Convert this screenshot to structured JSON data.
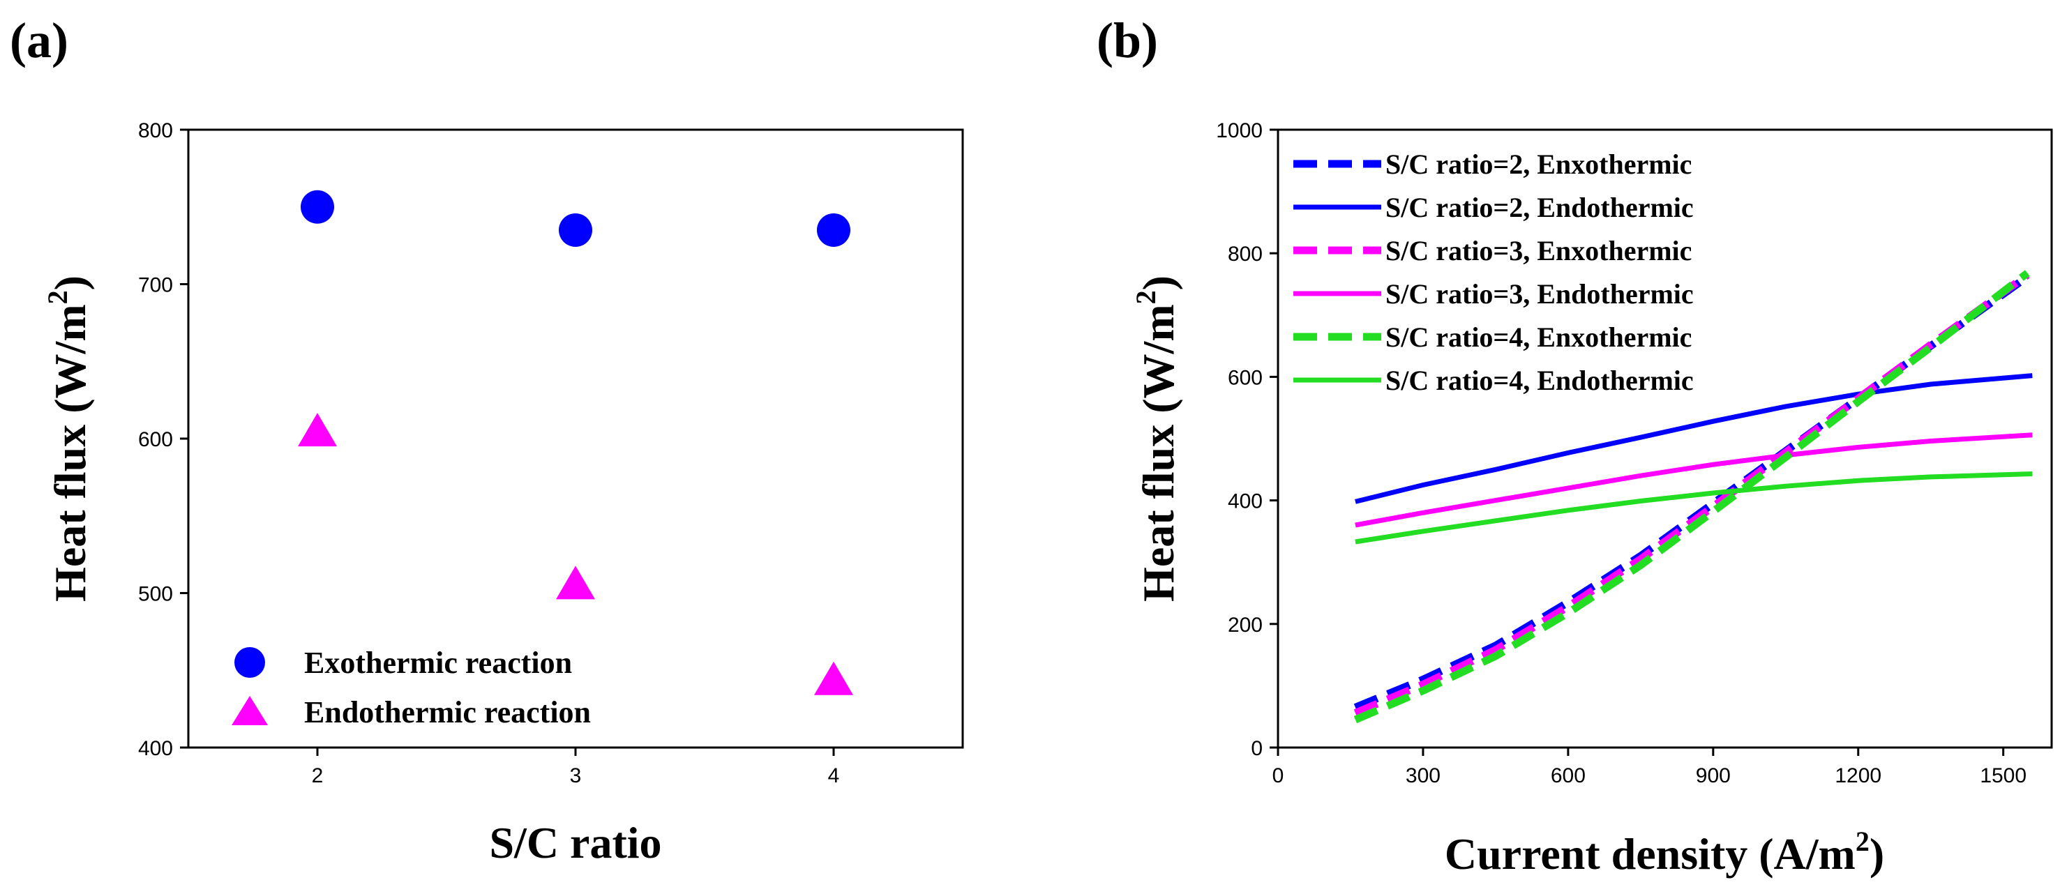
{
  "chart_data": [
    {
      "type": "scatter",
      "panel_label": "(a)",
      "xlabel": "S/C ratio",
      "ylabel_main": "Heat flux (W/m",
      "ylabel_sup": "2",
      "ylabel_close": ")",
      "xlim": [
        1.5,
        4.5
      ],
      "ylim": [
        400,
        800
      ],
      "xticks": [
        2,
        3,
        4
      ],
      "yticks": [
        400,
        500,
        600,
        700,
        800
      ],
      "legend_position": "bottom-left",
      "series": [
        {
          "name": "Exothermic reaction",
          "marker": "circle",
          "color": "#0000ff",
          "x": [
            2,
            3,
            4
          ],
          "y": [
            750,
            735,
            735
          ]
        },
        {
          "name": "Endothermic reaction",
          "marker": "triangle",
          "color": "#ff00ff",
          "x": [
            2,
            3,
            4
          ],
          "y": [
            604,
            505,
            443
          ]
        }
      ]
    },
    {
      "type": "line",
      "panel_label": "(b)",
      "xlabel_main": "Current density (A/m",
      "xlabel_sup": "2",
      "xlabel_close": ")",
      "ylabel_main": "Heat flux (W/m",
      "ylabel_sup": "2",
      "ylabel_close": ")",
      "xlim": [
        0,
        1600
      ],
      "ylim": [
        0,
        1000
      ],
      "xticks": [
        0,
        300,
        600,
        900,
        1200,
        1500
      ],
      "yticks": [
        0,
        200,
        400,
        600,
        800,
        1000
      ],
      "legend_position": "top-left",
      "series": [
        {
          "name": "S/C ratio=2, Enxothermic",
          "color": "#0000ff",
          "style": "dashed",
          "x": [
            160,
            300,
            450,
            600,
            750,
            900,
            1050,
            1200,
            1350,
            1550
          ],
          "y": [
            65,
            110,
            165,
            235,
            310,
            395,
            480,
            565,
            650,
            762
          ]
        },
        {
          "name": "S/C ratio=2, Endothermic",
          "color": "#0000ff",
          "style": "solid",
          "x": [
            160,
            300,
            450,
            600,
            750,
            900,
            1050,
            1200,
            1350,
            1560
          ],
          "y": [
            398,
            425,
            450,
            477,
            502,
            528,
            552,
            572,
            588,
            602
          ]
        },
        {
          "name": "S/C ratio=3, Enxothermic",
          "color": "#ff00ff",
          "style": "dashed",
          "x": [
            160,
            300,
            450,
            600,
            750,
            900,
            1050,
            1200,
            1350,
            1550
          ],
          "y": [
            56,
            102,
            158,
            228,
            305,
            390,
            478,
            565,
            652,
            765
          ]
        },
        {
          "name": "S/C ratio=3, Endothermic",
          "color": "#ff00ff",
          "style": "solid",
          "x": [
            160,
            300,
            450,
            600,
            750,
            900,
            1050,
            1200,
            1350,
            1560
          ],
          "y": [
            360,
            380,
            400,
            420,
            440,
            458,
            473,
            486,
            496,
            506
          ]
        },
        {
          "name": "S/C ratio=4, Enxothermic",
          "color": "#22dd22",
          "style": "dashed",
          "x": [
            160,
            300,
            450,
            600,
            750,
            900,
            1050,
            1200,
            1350,
            1550
          ],
          "y": [
            45,
            92,
            148,
            218,
            295,
            382,
            470,
            560,
            648,
            768
          ]
        },
        {
          "name": "S/C ratio=4, Endothermic",
          "color": "#22dd22",
          "style": "solid",
          "x": [
            160,
            300,
            450,
            600,
            750,
            900,
            1050,
            1200,
            1350,
            1560
          ],
          "y": [
            333,
            350,
            367,
            384,
            399,
            412,
            423,
            432,
            438,
            443
          ]
        }
      ]
    }
  ]
}
